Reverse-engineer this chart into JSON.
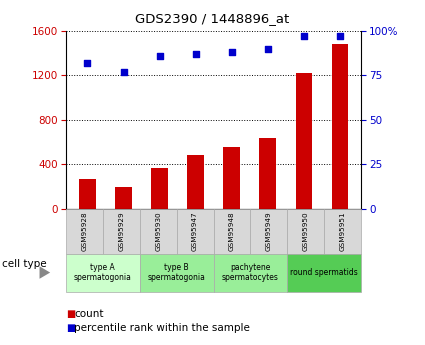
{
  "title": "GDS2390 / 1448896_at",
  "categories": [
    "GSM95928",
    "GSM95929",
    "GSM95930",
    "GSM95947",
    "GSM95948",
    "GSM95949",
    "GSM95950",
    "GSM95951"
  ],
  "bar_values": [
    270,
    195,
    365,
    480,
    560,
    640,
    1220,
    1480
  ],
  "percentile_values": [
    82,
    77,
    86,
    87,
    88,
    90,
    97,
    97
  ],
  "bar_color": "#cc0000",
  "scatter_color": "#0000cc",
  "ylim_left": [
    0,
    1600
  ],
  "ylim_right": [
    0,
    100
  ],
  "yticks_left": [
    0,
    400,
    800,
    1200,
    1600
  ],
  "yticks_right": [
    0,
    25,
    50,
    75,
    100
  ],
  "yticklabels_right": [
    "0",
    "25",
    "50",
    "75",
    "100%"
  ],
  "cell_type_colors": [
    "#ccffcc",
    "#99ee99",
    "#99ee99",
    "#55cc55"
  ],
  "cell_type_labels": [
    "type A\nspermatogonia",
    "type B\nspermatogonia",
    "pachytene\nspermatocytes",
    "round spermatids"
  ],
  "cell_type_starts": [
    0,
    2,
    4,
    6
  ],
  "cell_type_ends": [
    2,
    4,
    6,
    8
  ],
  "cell_type_label": "cell type",
  "legend_count_label": "count",
  "legend_percentile_label": "percentile rank within the sample",
  "background_color": "#ffffff",
  "tick_label_color_left": "#cc0000",
  "tick_label_color_right": "#0000cc",
  "sample_box_color": "#d8d8d8"
}
